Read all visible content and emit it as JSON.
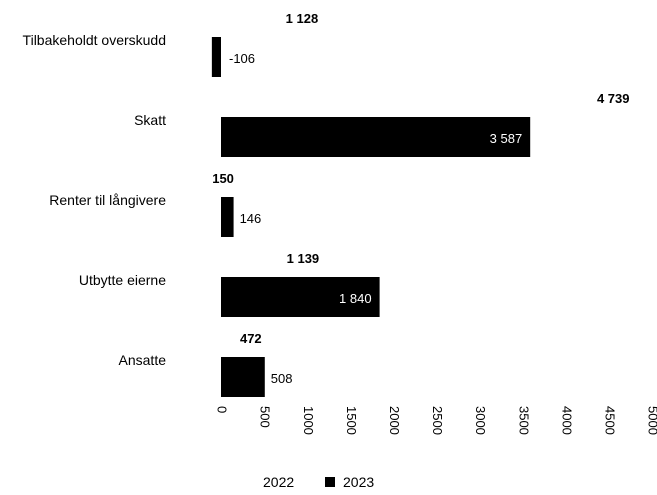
{
  "chart_data": {
    "type": "bar",
    "orientation": "horizontal",
    "categories": [
      "Tilbakeholdt overskudd",
      "Skatt",
      "Renter til långivere",
      "Utbytte eierne",
      "Ansatte"
    ],
    "series": [
      {
        "name": "2022",
        "values": [
          1128,
          4739,
          150,
          1139,
          472
        ],
        "color": "#ffffff",
        "labels": [
          "1 128",
          "4 739",
          "150",
          "1 139",
          "472"
        ]
      },
      {
        "name": "2023",
        "values": [
          -106,
          3587,
          146,
          1840,
          508
        ],
        "color": "#000000",
        "labels": [
          "-106",
          "3 587",
          "146",
          "1 840",
          "508"
        ]
      }
    ],
    "xlim": [
      0,
      5000
    ],
    "xticks": [
      0,
      500,
      1000,
      1500,
      2000,
      2500,
      3000,
      3500,
      4000,
      4500,
      5000
    ],
    "xtick_labels": [
      "0",
      "500",
      "1000",
      "1500",
      "2000",
      "2500",
      "3000",
      "3500",
      "4000",
      "4500",
      "5000"
    ],
    "title": "",
    "xlabel": "",
    "ylabel": "",
    "grid": false,
    "legend": "bottom-center"
  }
}
